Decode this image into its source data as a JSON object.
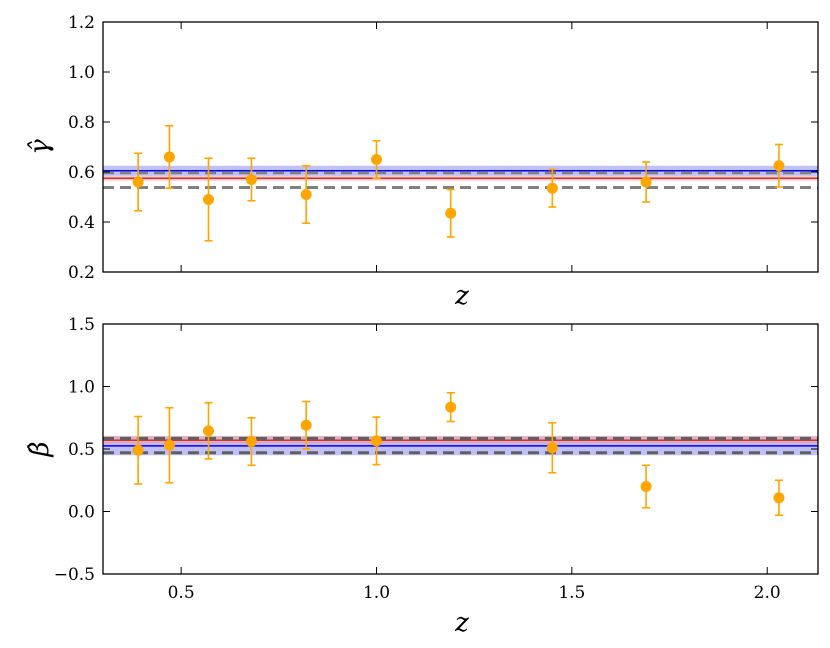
{
  "chart_data": [
    {
      "type": "scatter",
      "xlabel": "z",
      "ylabel": "γ̂",
      "xlim": [
        0.3,
        2.13
      ],
      "ylim": [
        0.2,
        1.2
      ],
      "yticks": [
        "0.2",
        "0.4",
        "0.6",
        "0.8",
        "1.0",
        "1.2"
      ],
      "show_xtick_labels": false,
      "grid": false,
      "series": [
        {
          "x": [
            0.39,
            0.47,
            0.57,
            0.68,
            0.82,
            1.0,
            1.19,
            1.45,
            1.69,
            2.03
          ],
          "y": [
            0.56,
            0.66,
            0.49,
            0.57,
            0.51,
            0.65,
            0.435,
            0.535,
            0.56,
            0.625
          ],
          "err": [
            0.115,
            0.125,
            0.165,
            0.085,
            0.115,
            0.075,
            0.095,
            0.075,
            0.08,
            0.085
          ],
          "color": "#FFA500"
        }
      ],
      "bands": [
        {
          "center": 0.605,
          "halfwidth": 0.02,
          "line": "#0000FF",
          "fill": "#8c8cf0"
        },
        {
          "center": 0.575,
          "halfwidth": 0.01,
          "line": "#CC3333",
          "fill": "#e8a0a0"
        }
      ],
      "dashed_lines": [
        0.597,
        0.538
      ],
      "dash_color": "#808080"
    },
    {
      "type": "scatter",
      "xlabel": "z",
      "ylabel": "β̂",
      "xlim": [
        0.3,
        2.13
      ],
      "ylim": [
        -0.5,
        1.5
      ],
      "xticks": [
        "0.5",
        "1.0",
        "1.5",
        "2.0"
      ],
      "yticks": [
        "−0.5",
        "0.0",
        "0.5",
        "1.0",
        "1.5"
      ],
      "grid": false,
      "series": [
        {
          "x": [
            0.39,
            0.47,
            0.57,
            0.68,
            0.82,
            1.0,
            1.19,
            1.45,
            1.69,
            2.03
          ],
          "y": [
            0.49,
            0.53,
            0.645,
            0.56,
            0.69,
            0.565,
            0.835,
            0.51,
            0.2,
            0.11
          ],
          "err": [
            0.27,
            0.3,
            0.225,
            0.19,
            0.19,
            0.19,
            0.115,
            0.2,
            0.17,
            0.14
          ],
          "color": "#FFA500"
        }
      ],
      "bands": [
        {
          "center": 0.525,
          "halfwidth": 0.075,
          "line": "#0000FF",
          "fill": "#8c8cf0"
        },
        {
          "center": 0.57,
          "halfwidth": 0.035,
          "line": "#CC3333",
          "fill": "#e8a0a0"
        }
      ],
      "dashed_lines": [
        0.585,
        0.47
      ],
      "dash_color": "#606060"
    }
  ]
}
